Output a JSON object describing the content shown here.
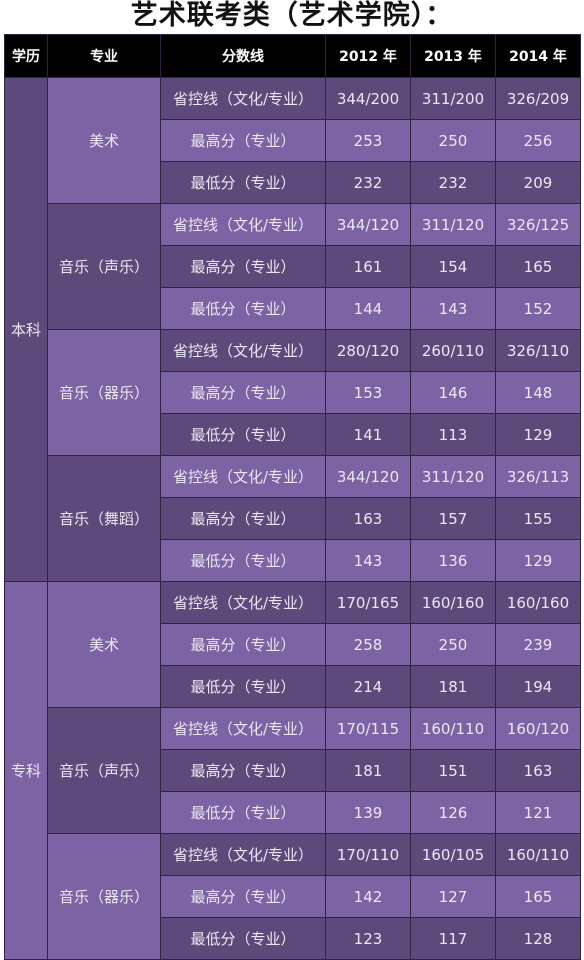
{
  "title": "艺术联考类（艺术学院）：",
  "headers": [
    "学历",
    "专业",
    "分数线",
    "2012 年",
    "2013 年",
    "2014 年"
  ],
  "sections": [
    {
      "level": "本科",
      "majors": [
        {
          "name": "美术",
          "rows": [
            [
              "省控线（文化/专业）",
              "344/200",
              "311/200",
              "326/209"
            ],
            [
              "最高分（专业）",
              "253",
              "250",
              "256"
            ],
            [
              "最低分（专业）",
              "232",
              "232",
              "209"
            ]
          ]
        },
        {
          "name": "音乐（声乐）",
          "rows": [
            [
              "省控线（文化/专业）",
              "344/120",
              "311/120",
              "326/125"
            ],
            [
              "最高分（专业）",
              "161",
              "154",
              "165"
            ],
            [
              "最低分（专业）",
              "144",
              "143",
              "152"
            ]
          ]
        },
        {
          "name": "音乐（器乐）",
          "rows": [
            [
              "省控线（文化/专业）",
              "280/120",
              "260/110",
              "326/110"
            ],
            [
              "最高分（专业）",
              "153",
              "146",
              "148"
            ],
            [
              "最低分（专业）",
              "141",
              "113",
              "129"
            ]
          ]
        },
        {
          "name": "音乐（舞蹈）",
          "rows": [
            [
              "省控线（文化/专业）",
              "344/120",
              "311/120",
              "326/113"
            ],
            [
              "最高分（专业）",
              "163",
              "157",
              "155"
            ],
            [
              "最低分（专业）",
              "143",
              "136",
              "129"
            ]
          ]
        }
      ]
    },
    {
      "level": "专科",
      "majors": [
        {
          "name": "美术",
          "rows": [
            [
              "省控线（文化/专业）",
              "170/165",
              "160/160",
              "160/160"
            ],
            [
              "最高分（专业）",
              "258",
              "250",
              "239"
            ],
            [
              "最低分（专业）",
              "214",
              "181",
              "194"
            ]
          ]
        },
        {
          "name": "音乐（声乐）",
          "rows": [
            [
              "省控线（文化/专业）",
              "170/115",
              "160/110",
              "160/120"
            ],
            [
              "最高分（专业）",
              "181",
              "151",
              "163"
            ],
            [
              "最低分（专业）",
              "139",
              "126",
              "121"
            ]
          ]
        },
        {
          "name": "音乐（器乐）",
          "rows": [
            [
              "省控线（文化/专业）",
              "170/110",
              "160/105",
              "160/110"
            ],
            [
              "最高分（专业）",
              "142",
              "127",
              "165"
            ],
            [
              "最低分（专业）",
              "123",
              "117",
              "128"
            ]
          ]
        }
      ]
    }
  ],
  "colors": {
    "header_bg": "#000000",
    "purple_light": "#7d63a4",
    "purple_dark": "#5e4a7a",
    "border": "#2e2440"
  }
}
